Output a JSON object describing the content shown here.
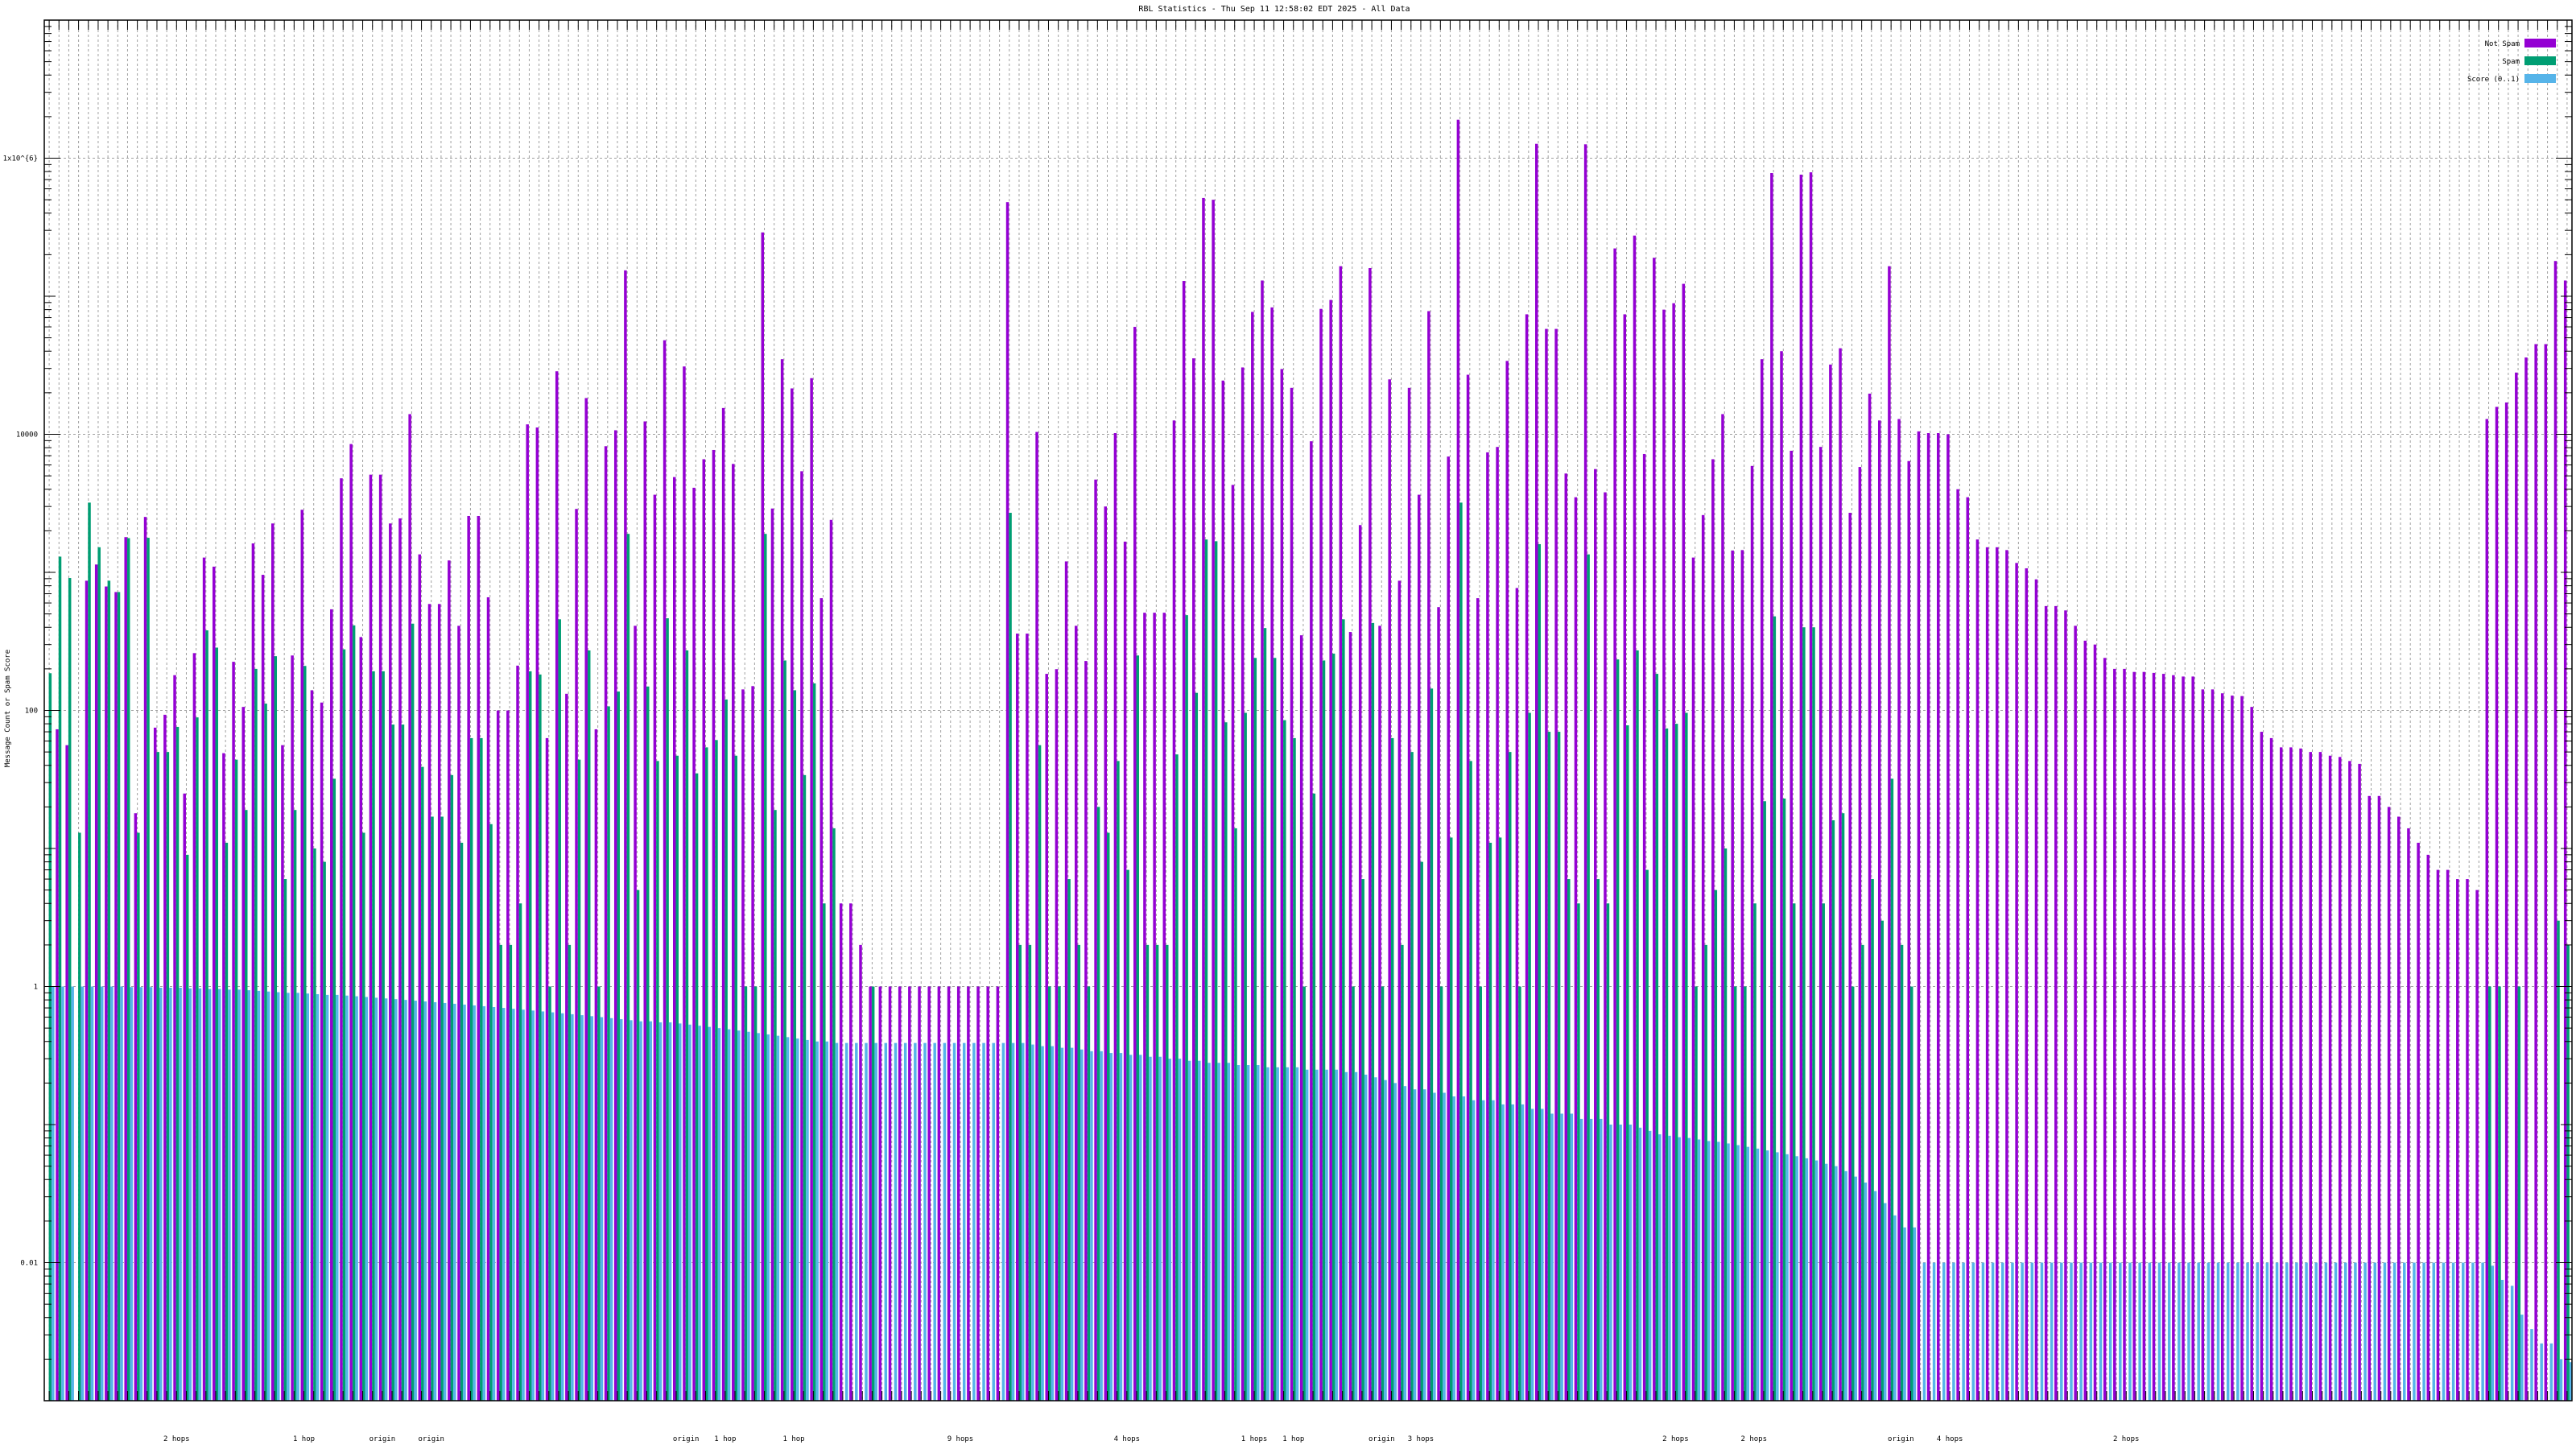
{
  "chart_data": {
    "type": "bar",
    "title": "RBL Statistics - Thu Sep 11 12:58:02 EDT 2025 - All Data",
    "ylabel": "Message Count or Spam Score",
    "xlabel": "",
    "yscale": "log",
    "ylim": [
      0.001,
      10000000
    ],
    "y_tick_labels": [
      {
        "value": 1000000,
        "label": "1x10^{6}"
      },
      {
        "value": 10000,
        "label": "10000"
      },
      {
        "value": 100,
        "label": "100"
      },
      {
        "value": 1,
        "label": "1"
      },
      {
        "value": 0.01,
        "label": "0.01"
      }
    ],
    "grid": true,
    "legend_position": "top-right",
    "x_tick_labels_legible": [
      {
        "category": 14,
        "text": "2 hops"
      },
      {
        "category": 27,
        "text": "1 hop"
      },
      {
        "category": 35,
        "text": "origin"
      },
      {
        "category": 40,
        "text": "origin"
      },
      {
        "category": 66,
        "text": "origin"
      },
      {
        "category": 70,
        "text": "1 hop"
      },
      {
        "category": 77,
        "text": "1 hop"
      },
      {
        "category": 94,
        "text": "9 hops"
      },
      {
        "category": 111,
        "text": "4 hops"
      },
      {
        "category": 124,
        "text": "1 hops"
      },
      {
        "category": 128,
        "text": "1 hop"
      },
      {
        "category": 137,
        "text": "origin"
      },
      {
        "category": 141,
        "text": "3 hops"
      },
      {
        "category": 167,
        "text": "2 hops"
      },
      {
        "category": 175,
        "text": "2 hops"
      },
      {
        "category": 190,
        "text": "origin"
      },
      {
        "category": 195,
        "text": "4 hops"
      },
      {
        "category": 213,
        "text": "2 hops"
      }
    ],
    "series": [
      {
        "name": "Not Spam",
        "color": "#9400d3",
        "values": [
          0,
          73,
          56,
          0,
          870,
          1140,
          790,
          720,
          1800,
          18,
          2520,
          75,
          93,
          180,
          25,
          260,
          1280,
          1100,
          49,
          225,
          106,
          1620,
          960,
          2260,
          56,
          250,
          2840,
          140,
          114,
          540,
          4800,
          8500,
          340,
          5100,
          5100,
          2260,
          2460,
          14000,
          1350,
          590,
          590,
          1220,
          410,
          2560,
          2560,
          660,
          100,
          100,
          211,
          11800,
          11200,
          63,
          28600,
          132,
          2880,
          18300,
          73,
          8200,
          10700,
          154000,
          410,
          12400,
          3650,
          48000,
          4900,
          31000,
          4100,
          6600,
          7700,
          15500,
          6100,
          142,
          150,
          290000,
          2900,
          35000,
          21500,
          5400,
          25500,
          650,
          2400,
          4,
          4,
          2,
          1,
          1,
          1,
          1,
          1,
          1,
          1,
          1,
          1,
          1,
          1,
          1,
          1,
          1,
          480000,
          360,
          360,
          10400,
          184,
          199,
          1200,
          410,
          228,
          4700,
          3000,
          10200,
          1670,
          60000,
          510,
          510,
          510,
          12600,
          129000,
          35500,
          515000,
          500000,
          24500,
          4300,
          30500,
          77000,
          130000,
          83000,
          29700,
          21700,
          350,
          8900,
          81000,
          94000,
          165000,
          370,
          2200,
          160000,
          410,
          25000,
          870,
          21700,
          3650,
          78000,
          560,
          6900,
          1900000,
          27000,
          650,
          7400,
          8100,
          34000,
          770,
          74000,
          1270000,
          58000,
          58000,
          5200,
          3500,
          1260000,
          5600,
          3800,
          222000,
          74000,
          275000,
          7200,
          190000,
          80000,
          89000,
          123000,
          1280,
          2600,
          6600,
          14000,
          1440,
          1450,
          5900,
          35000,
          780000,
          40000,
          7600,
          760000,
          790000,
          8100,
          32000,
          42000,
          2700,
          5800,
          19700,
          12600,
          165000,
          12900,
          6400,
          10500,
          10200,
          10200,
          10000,
          4000,
          3500,
          1730,
          1520,
          1520,
          1450,
          1170,
          1070,
          890,
          570,
          570,
          530,
          410,
          320,
          300,
          240,
          200,
          200,
          190,
          190,
          187,
          184,
          180,
          176,
          176,
          142,
          142,
          133,
          128,
          127,
          106,
          70,
          63,
          54,
          54,
          53,
          50,
          50,
          47,
          46,
          43,
          41,
          24,
          24,
          20,
          17,
          14,
          11,
          9,
          7,
          7,
          6,
          6,
          5,
          12900,
          15800,
          17000,
          28000,
          36000,
          45000,
          45000,
          180000,
          130000
        ]
      },
      {
        "name": "Spam",
        "color": "#009e73",
        "values": [
          186,
          1300,
          910,
          13,
          3200,
          1520,
          870,
          720,
          1770,
          13,
          1780,
          50,
          50,
          76,
          9,
          89,
          380,
          285,
          11,
          44,
          19,
          200,
          112,
          247,
          6,
          19,
          210,
          10,
          8,
          32,
          277,
          413,
          13,
          192,
          192,
          79,
          79,
          425,
          39,
          17,
          17,
          34,
          11,
          63,
          63,
          15,
          2,
          2,
          4,
          192,
          182,
          1,
          457,
          2,
          44,
          272,
          1,
          107,
          137,
          1900,
          5,
          149,
          43,
          465,
          47,
          272,
          35,
          54,
          61,
          120,
          47,
          1,
          1,
          1900,
          19,
          230,
          140,
          34,
          157,
          4,
          14,
          0,
          0,
          0,
          1,
          0,
          0,
          0,
          0,
          0,
          0,
          0,
          0,
          0,
          0,
          0,
          0,
          0,
          2700,
          2,
          2,
          56,
          1,
          1,
          6,
          2,
          1,
          20,
          13,
          43,
          7,
          250,
          2,
          2,
          2,
          48,
          490,
          134,
          1730,
          1680,
          82,
          14,
          96,
          240,
          395,
          240,
          85,
          63,
          1,
          25,
          230,
          258,
          457,
          1,
          6,
          430,
          1,
          63,
          2,
          50,
          8,
          144,
          1,
          12,
          3200,
          43,
          1,
          11,
          12,
          50,
          1,
          96,
          1600,
          70,
          70,
          6,
          4,
          1350,
          6,
          4,
          234,
          78,
          272,
          7,
          184,
          74,
          80,
          96,
          1,
          2,
          5,
          10,
          1,
          1,
          4,
          22,
          480,
          23,
          4,
          400,
          400,
          4,
          16,
          18,
          1,
          2,
          6,
          3,
          32,
          2,
          1,
          0,
          0,
          0,
          0,
          0,
          0,
          0,
          0,
          0,
          0,
          0,
          0,
          0,
          0,
          0,
          0,
          0,
          0,
          0,
          0,
          0,
          0,
          0,
          0,
          0,
          0,
          0,
          0,
          0,
          0,
          0,
          0,
          0,
          0,
          0,
          0,
          0,
          0,
          0,
          0,
          0,
          0,
          0,
          0,
          0,
          0,
          0,
          0,
          0,
          0,
          0,
          0,
          0,
          0,
          0,
          0,
          0,
          0,
          1,
          1,
          0,
          1,
          0,
          0,
          0,
          3,
          2
        ]
      },
      {
        "name": "Score (0..1)",
        "color": "#56b4e9",
        "values": [
          1,
          1,
          1,
          1,
          1,
          1,
          1,
          1,
          0.99,
          0.99,
          0.99,
          0.98,
          0.98,
          0.98,
          0.97,
          0.97,
          0.96,
          0.96,
          0.95,
          0.95,
          0.94,
          0.93,
          0.92,
          0.91,
          0.9,
          0.9,
          0.89,
          0.88,
          0.87,
          0.87,
          0.86,
          0.85,
          0.84,
          0.83,
          0.82,
          0.81,
          0.8,
          0.79,
          0.78,
          0.77,
          0.76,
          0.75,
          0.74,
          0.73,
          0.72,
          0.71,
          0.7,
          0.69,
          0.68,
          0.67,
          0.66,
          0.65,
          0.64,
          0.63,
          0.62,
          0.61,
          0.6,
          0.59,
          0.58,
          0.57,
          0.56,
          0.56,
          0.55,
          0.55,
          0.54,
          0.53,
          0.52,
          0.51,
          0.5,
          0.49,
          0.48,
          0.47,
          0.46,
          0.45,
          0.44,
          0.43,
          0.42,
          0.41,
          0.4,
          0.4,
          0.39,
          0.39,
          0.39,
          0.39,
          0.39,
          0.39,
          0.39,
          0.39,
          0.39,
          0.39,
          0.39,
          0.39,
          0.39,
          0.39,
          0.39,
          0.39,
          0.39,
          0.39,
          0.39,
          0.39,
          0.38,
          0.37,
          0.37,
          0.36,
          0.36,
          0.35,
          0.34,
          0.34,
          0.33,
          0.33,
          0.32,
          0.32,
          0.31,
          0.31,
          0.3,
          0.3,
          0.29,
          0.29,
          0.28,
          0.28,
          0.28,
          0.27,
          0.27,
          0.27,
          0.26,
          0.26,
          0.26,
          0.26,
          0.25,
          0.25,
          0.25,
          0.25,
          0.24,
          0.24,
          0.23,
          0.22,
          0.21,
          0.2,
          0.19,
          0.18,
          0.18,
          0.17,
          0.17,
          0.16,
          0.16,
          0.15,
          0.15,
          0.15,
          0.14,
          0.14,
          0.14,
          0.13,
          0.13,
          0.12,
          0.12,
          0.12,
          0.11,
          0.11,
          0.11,
          0.1,
          0.1,
          0.1,
          0.095,
          0.09,
          0.085,
          0.083,
          0.081,
          0.08,
          0.078,
          0.076,
          0.075,
          0.073,
          0.071,
          0.069,
          0.067,
          0.065,
          0.063,
          0.061,
          0.059,
          0.057,
          0.055,
          0.052,
          0.05,
          0.046,
          0.042,
          0.038,
          0.033,
          0.027,
          0.022,
          0.018,
          0.018,
          0.01,
          0.01,
          0.01,
          0.01,
          0.01,
          0.01,
          0.01,
          0.01,
          0.01,
          0.01,
          0.01,
          0.01,
          0.01,
          0.01,
          0.01,
          0.01,
          0.01,
          0.01,
          0.01,
          0.01,
          0.01,
          0.01,
          0.01,
          0.01,
          0.01,
          0.01,
          0.01,
          0.01,
          0.01,
          0.01,
          0.01,
          0.01,
          0.01,
          0.01,
          0.01,
          0.01,
          0.01,
          0.01,
          0.01,
          0.01,
          0.01,
          0.01,
          0.01,
          0.01,
          0.01,
          0.01,
          0.01,
          0.01,
          0.01,
          0.01,
          0.01,
          0.01,
          0.01,
          0.01,
          0.01,
          0.01,
          0.01,
          0.01,
          0.0095,
          0.0075,
          0.0068,
          0.0042,
          0.0033,
          0.0026,
          0.0026,
          0.002,
          0.0019
        ]
      }
    ]
  }
}
